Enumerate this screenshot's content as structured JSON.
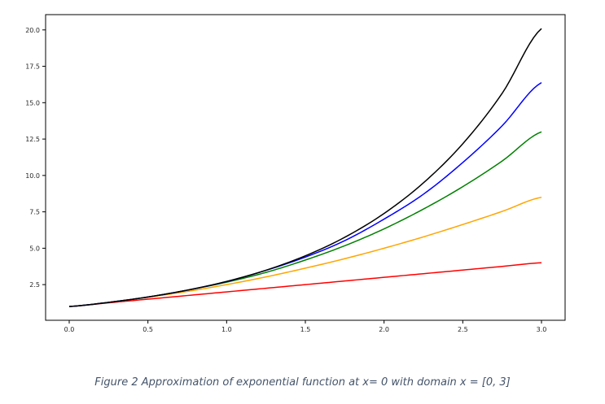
{
  "caption": "Figure 2 Approximation of exponential function at x= 0 with domain x = [0, 3]",
  "chart_data": {
    "type": "line",
    "title": "",
    "xlabel": "",
    "ylabel": "",
    "xlim": [
      -0.15,
      3.15
    ],
    "ylim": [
      0.05,
      21.05
    ],
    "grid": false,
    "x_ticks": [
      "0.0",
      "0.5",
      "1.0",
      "1.5",
      "2.0",
      "2.5",
      "3.0"
    ],
    "y_ticks": [
      "2.5",
      "5.0",
      "7.5",
      "10.0",
      "12.5",
      "15.0",
      "17.5",
      "20.0"
    ],
    "x": [
      0.0,
      0.25,
      0.5,
      0.75,
      1.0,
      1.25,
      1.5,
      1.75,
      2.0,
      2.25,
      2.5,
      2.75,
      3.0
    ],
    "series": [
      {
        "color": "#ff0000",
        "values": [
          1.0,
          1.25,
          1.5,
          1.75,
          2.0,
          2.25,
          2.5,
          2.75,
          3.0,
          3.25,
          3.5,
          3.75,
          4.0
        ]
      },
      {
        "color": "#ffa500",
        "values": [
          1.0,
          1.28,
          1.63,
          2.03,
          2.5,
          3.03,
          3.63,
          4.28,
          5.0,
          5.78,
          6.63,
          7.53,
          8.5
        ]
      },
      {
        "color": "#008000",
        "values": [
          1.0,
          1.28,
          1.65,
          2.12,
          2.67,
          3.34,
          4.19,
          5.17,
          6.33,
          7.69,
          9.23,
          10.99,
          13.0
        ]
      },
      {
        "color": "#0000ff",
        "values": [
          1.0,
          1.28,
          1.65,
          2.12,
          2.71,
          3.48,
          4.39,
          5.52,
          7.0,
          8.71,
          10.89,
          13.41,
          16.38
        ]
      },
      {
        "color": "#000000",
        "values": [
          1.0,
          1.28,
          1.65,
          2.12,
          2.72,
          3.49,
          4.48,
          5.75,
          7.39,
          9.49,
          12.18,
          15.64,
          20.09
        ]
      }
    ]
  }
}
